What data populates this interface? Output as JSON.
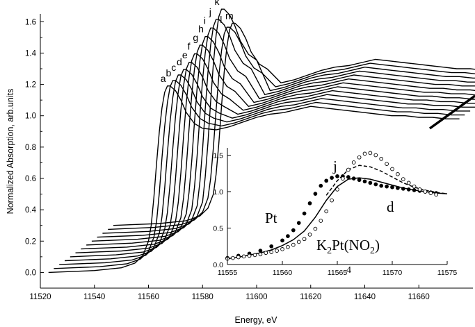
{
  "chart_data": [
    {
      "type": "line",
      "title": "",
      "xlabel": "Energy, eV",
      "ylabel": "Normalized Absorption, arb.units",
      "xlim": [
        11520,
        11680
      ],
      "ylim": [
        -0.1,
        1.65
      ],
      "x_ticks": [
        11520,
        11540,
        11560,
        11580,
        11600,
        11620,
        11640,
        11660
      ],
      "y_ticks": [
        0.0,
        0.2,
        0.4,
        0.6,
        0.8,
        1.0,
        1.2,
        1.4,
        1.6
      ],
      "grid": false,
      "series_labels": [
        "a",
        "b",
        "c",
        "d",
        "e",
        "f",
        "g",
        "h",
        "i",
        "j",
        "k",
        "l",
        "m"
      ],
      "stack_offset": {
        "x": 2.0,
        "y": 0.025
      },
      "base_curve": {
        "x": [
          11523,
          11530,
          11540,
          11550,
          11555,
          11558,
          11560,
          11561,
          11562,
          11563,
          11564,
          11565,
          11566,
          11567,
          11568,
          11570,
          11572,
          11574,
          11577,
          11580,
          11585,
          11590,
          11595,
          11600,
          11605,
          11610,
          11615,
          11620,
          11625,
          11630,
          11635,
          11640,
          11645,
          11650,
          11655,
          11660,
          11665,
          11670,
          11675
        ],
        "y": [
          0.0,
          0.005,
          0.012,
          0.03,
          0.06,
          0.11,
          0.2,
          0.3,
          0.48,
          0.7,
          0.9,
          1.05,
          1.15,
          1.19,
          1.19,
          1.16,
          1.1,
          1.02,
          0.95,
          0.92,
          0.91,
          0.93,
          0.96,
          0.99,
          1.01,
          1.02,
          1.04,
          1.06,
          1.05,
          1.04,
          1.03,
          1.02,
          1.01,
          1.0,
          1.0,
          0.99,
          0.99,
          0.98,
          0.98
        ]
      },
      "peak_heights": [
        1.19,
        1.2,
        1.21,
        1.22,
        1.24,
        1.27,
        1.3,
        1.33,
        1.36,
        1.39,
        1.43,
        1.29,
        1.29
      ]
    },
    {
      "type": "line",
      "title": "",
      "xlabel": "",
      "ylabel": "",
      "xlim": [
        11555,
        11575
      ],
      "ylim": [
        0.0,
        1.6
      ],
      "x_ticks": [
        11555,
        11560,
        11565,
        11570,
        11575
      ],
      "y_ticks": [
        0.0,
        0.5,
        1.0,
        1.5
      ],
      "grid": false,
      "annotations": [
        "j",
        "d",
        "Pt",
        "K",
        "2",
        "Pt(NO",
        "2",
        ")",
        "4"
      ],
      "series": [
        {
          "style": "solid",
          "x": [
            11555,
            11556,
            11557,
            11558,
            11559,
            11560,
            11561,
            11562,
            11563,
            11564,
            11565,
            11566,
            11567,
            11568,
            11569,
            11570,
            11571,
            11572,
            11573,
            11574,
            11575
          ],
          "y": [
            0.08,
            0.1,
            0.13,
            0.16,
            0.2,
            0.26,
            0.34,
            0.46,
            0.65,
            0.88,
            1.07,
            1.17,
            1.19,
            1.17,
            1.13,
            1.09,
            1.05,
            1.02,
            1.0,
            0.98,
            0.97
          ]
        },
        {
          "style": "dashed",
          "x": [
            11564,
            11565,
            11566,
            11567,
            11568,
            11569,
            11570,
            11571,
            11572,
            11573,
            11574,
            11575
          ],
          "y": [
            0.95,
            1.15,
            1.3,
            1.36,
            1.34,
            1.28,
            1.2,
            1.12,
            1.06,
            1.02,
            0.99,
            0.97
          ]
        },
        {
          "style": "filled-dots",
          "x": [
            11555,
            11556,
            11557,
            11558,
            11559,
            11560,
            11560.5,
            11561,
            11561.5,
            11562,
            11562.5,
            11563,
            11563.5,
            11564,
            11564.5,
            11565,
            11565.5,
            11566,
            11566.5,
            11567,
            11567.5,
            11568,
            11568.5,
            11569,
            11569.5,
            11570,
            11570.5,
            11571,
            11571.5,
            11572,
            11572.5,
            11573,
            11573.5,
            11574
          ],
          "y": [
            0.09,
            0.12,
            0.15,
            0.19,
            0.25,
            0.33,
            0.39,
            0.47,
            0.57,
            0.7,
            0.84,
            0.97,
            1.08,
            1.15,
            1.19,
            1.21,
            1.21,
            1.2,
            1.18,
            1.16,
            1.14,
            1.12,
            1.1,
            1.08,
            1.07,
            1.06,
            1.05,
            1.04,
            1.03,
            1.02,
            1.01,
            1.0,
            0.99,
            0.98
          ]
        },
        {
          "style": "open-dots",
          "x": [
            11555,
            11555.5,
            11556,
            11556.5,
            11557,
            11557.5,
            11558,
            11558.5,
            11559,
            11559.5,
            11560,
            11560.5,
            11561,
            11561.5,
            11562,
            11562.5,
            11563,
            11563.5,
            11564,
            11564.5,
            11565,
            11565.5,
            11566,
            11566.5,
            11567,
            11567.5,
            11568,
            11568.5,
            11569,
            11569.5,
            11570,
            11570.5,
            11571,
            11571.5,
            11572,
            11572.5,
            11573,
            11573.5,
            11574
          ],
          "y": [
            0.08,
            0.09,
            0.1,
            0.11,
            0.12,
            0.13,
            0.14,
            0.16,
            0.17,
            0.19,
            0.21,
            0.24,
            0.27,
            0.31,
            0.35,
            0.41,
            0.49,
            0.6,
            0.73,
            0.88,
            1.03,
            1.18,
            1.3,
            1.4,
            1.47,
            1.52,
            1.53,
            1.5,
            1.45,
            1.38,
            1.31,
            1.24,
            1.17,
            1.12,
            1.07,
            1.03,
            1.0,
            0.98,
            0.96
          ]
        }
      ]
    }
  ]
}
